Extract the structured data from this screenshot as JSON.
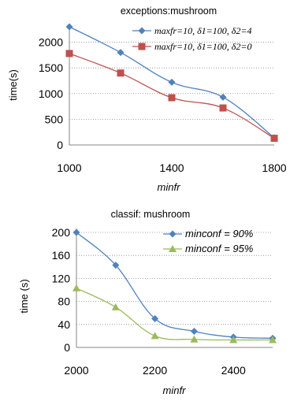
{
  "chart_data": [
    {
      "type": "line",
      "title": "exceptions:mushroom",
      "xlabel": "minfr",
      "ylabel": "time(s)",
      "x": [
        1000,
        1200,
        1400,
        1600,
        1800
      ],
      "xticks": [
        1000,
        1400,
        1800
      ],
      "yticks": [
        0,
        500,
        1000,
        1500,
        2000
      ],
      "xlim": [
        1000,
        1800
      ],
      "ylim": [
        0,
        2300
      ],
      "grid": "horizontal dotted",
      "legend": "top-right",
      "series": [
        {
          "name": "maxfr=10, δ1=100, δ2=4",
          "color": "#4F81BD",
          "marker": "diamond",
          "values": [
            2300,
            1800,
            1220,
            930,
            140
          ]
        },
        {
          "name": "maxfr=10, δ1=100, δ2=0",
          "color": "#C0504D",
          "marker": "square",
          "values": [
            1780,
            1400,
            920,
            720,
            130
          ]
        }
      ]
    },
    {
      "type": "line",
      "title": "classif: mushroom",
      "xlabel": "minfr",
      "ylabel": "time (s)",
      "x": [
        2000,
        2100,
        2200,
        2300,
        2400,
        2500
      ],
      "xticks": [
        2000,
        2200,
        2400
      ],
      "yticks": [
        0,
        40,
        80,
        120,
        160,
        200
      ],
      "xlim": [
        2000,
        2500
      ],
      "ylim": [
        0,
        200
      ],
      "grid": "horizontal dotted",
      "legend": "top-right",
      "series": [
        {
          "name": "minconf = 90%",
          "color": "#4F81BD",
          "marker": "diamond",
          "values": [
            200,
            143,
            50,
            28,
            18,
            16
          ]
        },
        {
          "name": "minconf = 95%",
          "color": "#9BBB59",
          "marker": "triangle",
          "values": [
            103,
            70,
            20,
            14,
            13,
            13
          ]
        }
      ]
    }
  ]
}
